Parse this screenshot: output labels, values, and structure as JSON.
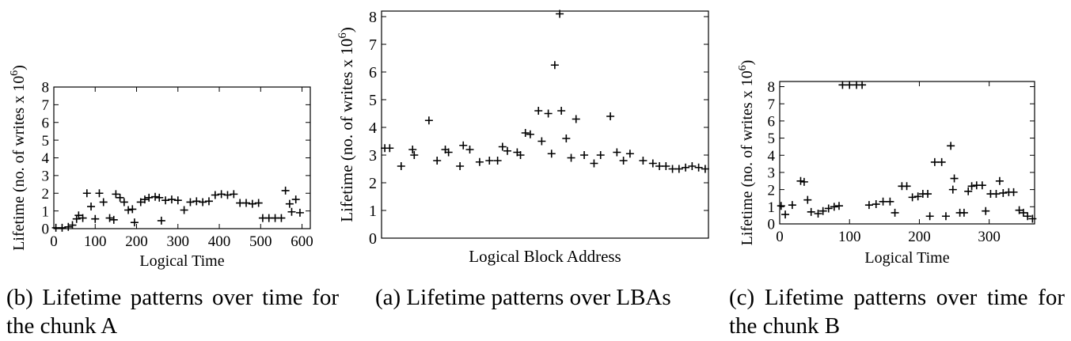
{
  "captions": {
    "b": "(b) Lifetime patterns over time for the chunk A",
    "a": "(a) Lifetime patterns over LBAs",
    "c": "(c) Lifetime patterns over time for the chunk B"
  },
  "chart_data": [
    {
      "id": "b",
      "type": "scatter",
      "title": "",
      "xlabel": "Logical Time",
      "ylabel": "Lifetime (no. of writes x 10^6)",
      "xlim": [
        0,
        620
      ],
      "ylim": [
        0,
        8
      ],
      "xticks": [
        0,
        100,
        200,
        300,
        400,
        500,
        600
      ],
      "yticks": [
        0,
        1,
        2,
        3,
        4,
        5,
        6,
        7,
        8
      ],
      "grid": false,
      "legend": "none",
      "series": [
        {
          "points": [
            [
              5,
              0.05
            ],
            [
              20,
              0.05
            ],
            [
              35,
              0.1
            ],
            [
              45,
              0.2
            ],
            [
              55,
              0.55
            ],
            [
              60,
              0.75
            ],
            [
              70,
              0.6
            ],
            [
              80,
              2.0
            ],
            [
              90,
              1.25
            ],
            [
              100,
              0.55
            ],
            [
              110,
              2.0
            ],
            [
              120,
              1.5
            ],
            [
              135,
              0.6
            ],
            [
              145,
              0.5
            ],
            [
              150,
              1.95
            ],
            [
              160,
              1.75
            ],
            [
              170,
              1.5
            ],
            [
              180,
              1.05
            ],
            [
              190,
              1.1
            ],
            [
              195,
              0.35
            ],
            [
              210,
              1.5
            ],
            [
              220,
              1.65
            ],
            [
              230,
              1.75
            ],
            [
              245,
              1.8
            ],
            [
              255,
              1.75
            ],
            [
              260,
              0.45
            ],
            [
              270,
              1.6
            ],
            [
              285,
              1.65
            ],
            [
              300,
              1.6
            ],
            [
              315,
              1.05
            ],
            [
              330,
              1.5
            ],
            [
              345,
              1.55
            ],
            [
              360,
              1.5
            ],
            [
              375,
              1.55
            ],
            [
              390,
              1.9
            ],
            [
              405,
              1.95
            ],
            [
              420,
              1.9
            ],
            [
              435,
              1.95
            ],
            [
              450,
              1.45
            ],
            [
              465,
              1.45
            ],
            [
              480,
              1.4
            ],
            [
              495,
              1.45
            ],
            [
              505,
              0.6
            ],
            [
              520,
              0.6
            ],
            [
              535,
              0.6
            ],
            [
              550,
              0.6
            ],
            [
              560,
              2.15
            ],
            [
              570,
              1.4
            ],
            [
              575,
              0.95
            ],
            [
              585,
              1.65
            ],
            [
              595,
              0.9
            ]
          ]
        }
      ]
    },
    {
      "id": "a",
      "type": "scatter",
      "title": "",
      "xlabel": "Logical Block Address",
      "ylabel": "Lifetime (no. of writes x 10^6)",
      "xlim": [
        0,
        1000
      ],
      "ylim": [
        0,
        8.2
      ],
      "xticks": [],
      "yticks": [
        0,
        1,
        2,
        3,
        4,
        5,
        6,
        7,
        8
      ],
      "grid": false,
      "legend": "none",
      "series": [
        {
          "points": [
            [
              10,
              3.25
            ],
            [
              25,
              3.25
            ],
            [
              60,
              2.6
            ],
            [
              95,
              3.2
            ],
            [
              100,
              3.0
            ],
            [
              145,
              4.25
            ],
            [
              170,
              2.8
            ],
            [
              195,
              3.2
            ],
            [
              205,
              3.1
            ],
            [
              240,
              2.6
            ],
            [
              250,
              3.35
            ],
            [
              270,
              3.2
            ],
            [
              300,
              2.75
            ],
            [
              330,
              2.8
            ],
            [
              355,
              2.8
            ],
            [
              370,
              3.3
            ],
            [
              385,
              3.15
            ],
            [
              415,
              3.1
            ],
            [
              425,
              3.0
            ],
            [
              440,
              3.8
            ],
            [
              455,
              3.75
            ],
            [
              480,
              4.6
            ],
            [
              490,
              3.5
            ],
            [
              510,
              4.5
            ],
            [
              520,
              3.05
            ],
            [
              530,
              6.25
            ],
            [
              545,
              8.1
            ],
            [
              550,
              4.6
            ],
            [
              565,
              3.6
            ],
            [
              580,
              2.9
            ],
            [
              595,
              4.3
            ],
            [
              620,
              3.0
            ],
            [
              650,
              2.7
            ],
            [
              670,
              3.0
            ],
            [
              700,
              4.4
            ],
            [
              720,
              3.1
            ],
            [
              740,
              2.8
            ],
            [
              760,
              3.05
            ],
            [
              800,
              2.8
            ],
            [
              830,
              2.7
            ],
            [
              850,
              2.6
            ],
            [
              870,
              2.6
            ],
            [
              890,
              2.5
            ],
            [
              910,
              2.5
            ],
            [
              930,
              2.55
            ],
            [
              950,
              2.6
            ],
            [
              970,
              2.55
            ],
            [
              990,
              2.5
            ]
          ]
        }
      ]
    },
    {
      "id": "c",
      "type": "scatter",
      "title": "",
      "xlabel": "Logical Time",
      "ylabel": "Lifetime (no. of writes x 10^6)",
      "xlim": [
        0,
        365
      ],
      "ylim": [
        0,
        8.3
      ],
      "xticks": [
        0,
        100,
        200,
        300
      ],
      "yticks": [
        0,
        1,
        2,
        3,
        4,
        5,
        6,
        7,
        8
      ],
      "grid": false,
      "legend": "none",
      "series": [
        {
          "points": [
            [
              2,
              1.05
            ],
            [
              8,
              0.55
            ],
            [
              18,
              1.1
            ],
            [
              30,
              2.5
            ],
            [
              35,
              2.45
            ],
            [
              40,
              1.4
            ],
            [
              45,
              0.7
            ],
            [
              55,
              0.6
            ],
            [
              62,
              0.75
            ],
            [
              70,
              0.9
            ],
            [
              78,
              1.0
            ],
            [
              85,
              1.05
            ],
            [
              90,
              8.1
            ],
            [
              100,
              8.1
            ],
            [
              110,
              8.1
            ],
            [
              118,
              8.1
            ],
            [
              128,
              1.1
            ],
            [
              138,
              1.15
            ],
            [
              148,
              1.3
            ],
            [
              158,
              1.3
            ],
            [
              165,
              0.65
            ],
            [
              175,
              2.2
            ],
            [
              182,
              2.2
            ],
            [
              190,
              1.55
            ],
            [
              198,
              1.6
            ],
            [
              205,
              1.75
            ],
            [
              212,
              1.75
            ],
            [
              215,
              0.45
            ],
            [
              222,
              3.6
            ],
            [
              232,
              3.6
            ],
            [
              238,
              0.45
            ],
            [
              245,
              4.55
            ],
            [
              250,
              2.65
            ],
            [
              248,
              2.0
            ],
            [
              258,
              0.65
            ],
            [
              264,
              0.65
            ],
            [
              270,
              1.9
            ],
            [
              275,
              2.2
            ],
            [
              282,
              2.25
            ],
            [
              290,
              2.25
            ],
            [
              295,
              0.75
            ],
            [
              302,
              1.75
            ],
            [
              310,
              1.75
            ],
            [
              315,
              2.5
            ],
            [
              320,
              1.8
            ],
            [
              328,
              1.85
            ],
            [
              335,
              1.85
            ],
            [
              343,
              0.8
            ],
            [
              349,
              0.65
            ],
            [
              355,
              0.45
            ],
            [
              362,
              0.3
            ]
          ]
        }
      ]
    }
  ]
}
